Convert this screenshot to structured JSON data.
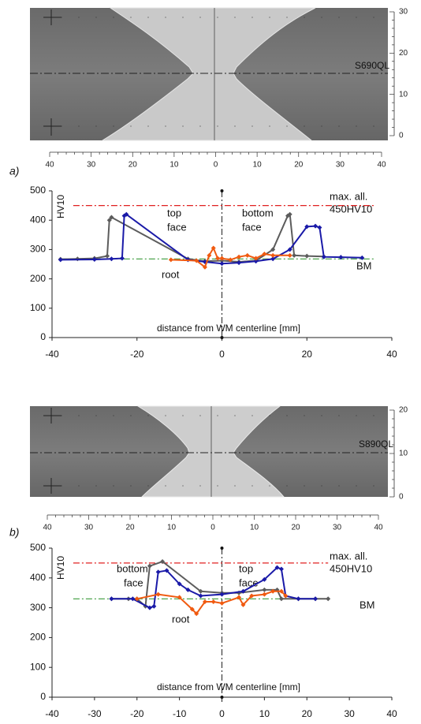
{
  "figures": [
    {
      "panel_label": "a)",
      "steel": "S690QL",
      "scale_x": [
        40,
        30,
        20,
        10,
        0,
        10,
        20,
        30,
        40
      ],
      "scale_y": [
        30,
        20,
        10,
        0
      ]
    },
    {
      "panel_label": "b)",
      "steel": "S890QL",
      "scale_x": [
        40,
        30,
        20,
        10,
        0,
        10,
        20,
        30,
        40
      ],
      "scale_y": [
        20,
        10,
        0
      ]
    }
  ],
  "chart_data": [
    {
      "type": "line",
      "y_label": "HV10",
      "x_label": "distance from WM centerline  [mm]",
      "annotations": [
        "max. all.",
        "450HV10",
        "top",
        "face",
        "bottom",
        "face",
        "root",
        "BM"
      ],
      "xlim": [
        -40,
        40
      ],
      "xticks": [
        -40,
        -20,
        0,
        20,
        40
      ],
      "ylim": [
        0,
        500
      ],
      "yticks": [
        0,
        100,
        200,
        300,
        400,
        500
      ],
      "series": [
        {
          "color": "#e02020",
          "dash": "dash-dot",
          "markers": false,
          "x": [
            -35,
            36
          ],
          "values": [
            450,
            450
          ]
        },
        {
          "color": "#3a9a3a",
          "dash": "dash-dot",
          "markers": false,
          "x": [
            -38,
            36
          ],
          "values": [
            268,
            268
          ]
        },
        {
          "color": "#5c5c5c",
          "dash": "solid",
          "markers": true,
          "x": [
            -38,
            -34,
            -30,
            -27,
            -26.5,
            -26,
            -8,
            -4,
            0,
            4,
            8,
            12,
            15.5,
            16,
            17,
            20,
            24
          ],
          "values": [
            267,
            268,
            270,
            278,
            400,
            410,
            268,
            260,
            262,
            258,
            262,
            300,
            415,
            420,
            280,
            278,
            276
          ]
        },
        {
          "color": "#1a1aa8",
          "dash": "solid",
          "markers": true,
          "x": [
            -38,
            -30,
            -26,
            -23.5,
            -23,
            -22.5,
            -8,
            -4,
            0,
            4,
            8,
            12,
            16,
            20,
            22,
            23,
            24,
            28,
            33
          ],
          "values": [
            265,
            266,
            268,
            270,
            415,
            420,
            265,
            258,
            252,
            255,
            260,
            268,
            300,
            378,
            380,
            375,
            275,
            274,
            272
          ]
        },
        {
          "color": "#f05a10",
          "dash": "solid",
          "markers": true,
          "x": [
            -12,
            -6,
            -4,
            -3,
            -2,
            -1,
            0,
            2,
            4,
            6,
            8,
            10,
            12,
            16
          ],
          "values": [
            265,
            262,
            240,
            280,
            305,
            270,
            270,
            265,
            275,
            280,
            270,
            285,
            280,
            280
          ]
        }
      ]
    },
    {
      "type": "line",
      "y_label": "HV10",
      "x_label": "distance from WM centerline  [mm]",
      "annotations": [
        "max. all.",
        "450HV10",
        "bottom",
        "face",
        "top",
        "face",
        "root",
        "BM"
      ],
      "xlim": [
        -40,
        40
      ],
      "xticks": [
        -40,
        -30,
        -20,
        -10,
        0,
        10,
        20,
        30,
        40
      ],
      "ylim": [
        0,
        500
      ],
      "yticks": [
        0,
        100,
        200,
        300,
        400,
        500
      ],
      "series": [
        {
          "color": "#e02020",
          "dash": "dash-dot",
          "markers": false,
          "x": [
            -35,
            25
          ],
          "values": [
            450,
            450
          ]
        },
        {
          "color": "#3a9a3a",
          "dash": "dash-dot",
          "markers": false,
          "x": [
            -35,
            25
          ],
          "values": [
            330,
            330
          ]
        },
        {
          "color": "#5c5c5c",
          "dash": "solid",
          "markers": true,
          "x": [
            -26,
            -22,
            -20,
            -18,
            -17,
            -14,
            -5,
            0,
            4,
            10,
            13,
            14,
            18,
            22,
            25
          ],
          "values": [
            330,
            330,
            330,
            305,
            440,
            455,
            355,
            350,
            350,
            360,
            360,
            330,
            330,
            330,
            330
          ]
        },
        {
          "color": "#1a1aa8",
          "dash": "solid",
          "markers": true,
          "x": [
            -26,
            -21,
            -17,
            -16,
            -15,
            -13,
            -10,
            -8,
            -5,
            0,
            5,
            10,
            13,
            14,
            15,
            18,
            22
          ],
          "values": [
            330,
            330,
            300,
            305,
            420,
            425,
            380,
            360,
            340,
            345,
            355,
            395,
            435,
            430,
            340,
            330,
            330
          ]
        },
        {
          "color": "#f05a10",
          "dash": "solid",
          "markers": true,
          "x": [
            -20,
            -15,
            -10,
            -7,
            -6,
            -4,
            -2,
            0,
            4,
            5,
            7,
            10,
            12,
            14,
            15
          ],
          "values": [
            330,
            345,
            335,
            295,
            280,
            320,
            320,
            315,
            335,
            310,
            340,
            345,
            355,
            355,
            340
          ]
        }
      ]
    }
  ]
}
